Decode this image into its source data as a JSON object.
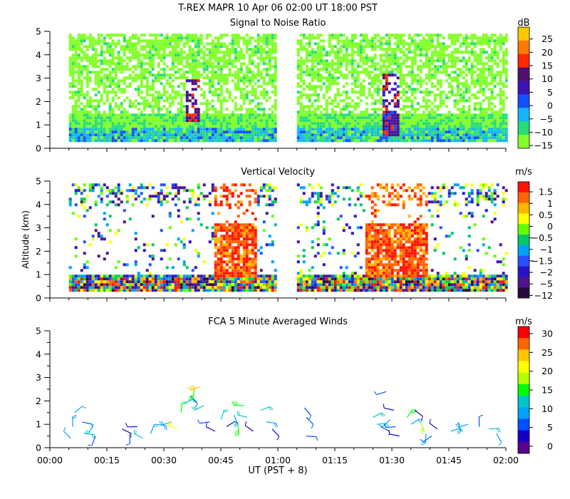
{
  "figure": {
    "title": "T-REX   MAPR 10 Apr 06   02:00 UT   18:00   PST",
    "xlabel": "UT  (PST + 8)",
    "ylabel": "Altitude (km)"
  },
  "chart_data": [
    {
      "type": "heatmap",
      "title": "Signal to Noise Ratio",
      "units": "dB",
      "x_ticks": [
        "00:00",
        "00:15",
        "00:30",
        "00:45",
        "01:00",
        "01:15",
        "01:30",
        "01:45",
        "02:00"
      ],
      "xlim_minutes": [
        0,
        120
      ],
      "y_ticks": [
        0,
        1,
        2,
        3,
        4,
        5
      ],
      "ylim": [
        0,
        5
      ],
      "colorbar_ticks": [
        "25",
        "20",
        "15",
        "10",
        "5",
        "0",
        "−5",
        "−10",
        "−15"
      ],
      "colorbar_colors": [
        "#ffc800",
        "#ff7800",
        "#ff2800",
        "#50106e",
        "#3c14b4",
        "#1450ff",
        "#14b4ff",
        "#28dc78",
        "#82ff28"
      ],
      "data_gap_minutes": [
        60.0,
        65.0
      ],
      "data_start_minutes": 5.0,
      "data_end_minutes": 120.0
    },
    {
      "type": "heatmap",
      "title": "Vertical Velocity",
      "units": "m/s",
      "x_ticks": [
        "00:00",
        "00:15",
        "00:30",
        "00:45",
        "01:00",
        "01:15",
        "01:30",
        "01:45",
        "02:00"
      ],
      "xlim_minutes": [
        0,
        120
      ],
      "y_ticks": [
        0,
        1,
        2,
        3,
        4,
        5
      ],
      "ylim": [
        0,
        5
      ],
      "colorbar_ticks": [
        "1.5",
        "1",
        "0.5",
        "0",
        "−0.5",
        "−1",
        "−1.5",
        "−2",
        "−5",
        "−12"
      ],
      "colorbar_colors": [
        "#ff1400",
        "#ff6400",
        "#ffb400",
        "#ffff00",
        "#64ff00",
        "#00c864",
        "#00a0ff",
        "#2850ff",
        "#2814c8",
        "#50148c",
        "#280a3c"
      ],
      "data_gap_minutes": [
        60.0,
        65.0
      ],
      "data_start_minutes": 5.0,
      "data_end_minutes": 120.0
    },
    {
      "type": "scatter",
      "subtype": "wind-barbs",
      "title": "FCA 5 Minute Averaged Winds",
      "units": "m/s",
      "x_ticks": [
        "00:00",
        "00:15",
        "00:30",
        "00:45",
        "01:00",
        "01:15",
        "01:30",
        "01:45",
        "02:00"
      ],
      "xlim_minutes": [
        0,
        120
      ],
      "y_ticks": [
        0,
        1,
        2,
        3,
        4,
        5
      ],
      "ylim": [
        0,
        5
      ],
      "colorbar_ticks": [
        "30",
        "25",
        "20",
        "15",
        "10",
        "5",
        "0"
      ],
      "colorbar_colors": [
        "#ff0000",
        "#ff6400",
        "#ffc800",
        "#ffff00",
        "#b4ff00",
        "#00ff00",
        "#00c8c8",
        "#00a0ff",
        "#0050ff",
        "#1400c8",
        "#5a0090"
      ],
      "barbs": [
        {
          "t": 6.5,
          "z": 1.5,
          "speed": 8
        },
        {
          "t": 6.0,
          "z": 0.9,
          "speed": 9
        },
        {
          "t": 5.5,
          "z": 0.4,
          "speed": 8
        },
        {
          "t": 8.5,
          "z": 1.1,
          "speed": 6
        },
        {
          "t": 9.0,
          "z": 0.6,
          "speed": 11
        },
        {
          "t": 11.5,
          "z": 1.0,
          "speed": 13
        },
        {
          "t": 12.0,
          "z": 0.5,
          "speed": 7
        },
        {
          "t": 19.0,
          "z": 0.8,
          "speed": 4
        },
        {
          "t": 21.0,
          "z": 0.6,
          "speed": 5
        },
        {
          "t": 23.0,
          "z": 0.9,
          "speed": 3
        },
        {
          "t": 24.5,
          "z": 0.4,
          "speed": 12
        },
        {
          "t": 26.5,
          "z": 0.6,
          "speed": 10
        },
        {
          "t": 28.0,
          "z": 1.0,
          "speed": 9
        },
        {
          "t": 32.0,
          "z": 1.1,
          "speed": 10
        },
        {
          "t": 33.5,
          "z": 0.8,
          "speed": 20
        },
        {
          "t": 34.5,
          "z": 1.5,
          "speed": 14
        },
        {
          "t": 35.5,
          "z": 1.9,
          "speed": 13
        },
        {
          "t": 37.0,
          "z": 2.2,
          "speed": 5
        },
        {
          "t": 38.0,
          "z": 2.5,
          "speed": 16
        },
        {
          "t": 39.5,
          "z": 2.6,
          "speed": 25
        },
        {
          "t": 40.5,
          "z": 1.8,
          "speed": 11
        },
        {
          "t": 42.0,
          "z": 1.1,
          "speed": 6
        },
        {
          "t": 43.5,
          "z": 0.7,
          "speed": 3
        },
        {
          "t": 45.0,
          "z": 1.2,
          "speed": 13
        },
        {
          "t": 46.5,
          "z": 0.9,
          "speed": 4
        },
        {
          "t": 48.5,
          "z": 1.4,
          "speed": 10
        },
        {
          "t": 49.5,
          "z": 1.0,
          "speed": 16
        },
        {
          "t": 51.0,
          "z": 1.8,
          "speed": 15
        },
        {
          "t": 52.0,
          "z": 1.3,
          "speed": 11
        },
        {
          "t": 53.5,
          "z": 0.7,
          "speed": 2
        },
        {
          "t": 55.5,
          "z": 1.6,
          "speed": 13
        },
        {
          "t": 57.0,
          "z": 1.1,
          "speed": 9
        },
        {
          "t": 58.5,
          "z": 0.8,
          "speed": 2
        },
        {
          "t": 67.0,
          "z": 1.7,
          "speed": 5
        },
        {
          "t": 67.5,
          "z": 1.3,
          "speed": 7
        },
        {
          "t": 67.5,
          "z": 0.5,
          "speed": 5
        },
        {
          "t": 85.0,
          "z": 1.3,
          "speed": 13
        },
        {
          "t": 86.0,
          "z": 1.0,
          "speed": 12
        },
        {
          "t": 87.0,
          "z": 0.9,
          "speed": 6
        },
        {
          "t": 88.5,
          "z": 2.4,
          "speed": 5
        },
        {
          "t": 89.5,
          "z": 1.2,
          "speed": 8
        },
        {
          "t": 90.5,
          "z": 1.6,
          "speed": 3
        },
        {
          "t": 91.0,
          "z": 0.9,
          "speed": 5
        },
        {
          "t": 92.0,
          "z": 0.5,
          "speed": 2
        },
        {
          "t": 94.0,
          "z": 1.3,
          "speed": 16
        },
        {
          "t": 95.0,
          "z": 1.0,
          "speed": 10
        },
        {
          "t": 96.0,
          "z": 1.6,
          "speed": 4
        },
        {
          "t": 97.5,
          "z": 1.1,
          "speed": 18
        },
        {
          "t": 99.0,
          "z": 0.6,
          "speed": 10
        },
        {
          "t": 100.5,
          "z": 0.5,
          "speed": 7
        },
        {
          "t": 102.0,
          "z": 0.8,
          "speed": 2
        },
        {
          "t": 105.5,
          "z": 0.7,
          "speed": 10
        },
        {
          "t": 107.5,
          "z": 1.1,
          "speed": 9
        },
        {
          "t": 110.0,
          "z": 1.0,
          "speed": 9
        },
        {
          "t": 113.0,
          "z": 0.9,
          "speed": 7
        },
        {
          "t": 115.5,
          "z": 0.8,
          "speed": 12
        },
        {
          "t": 117.5,
          "z": 0.6,
          "speed": 8
        }
      ]
    }
  ]
}
